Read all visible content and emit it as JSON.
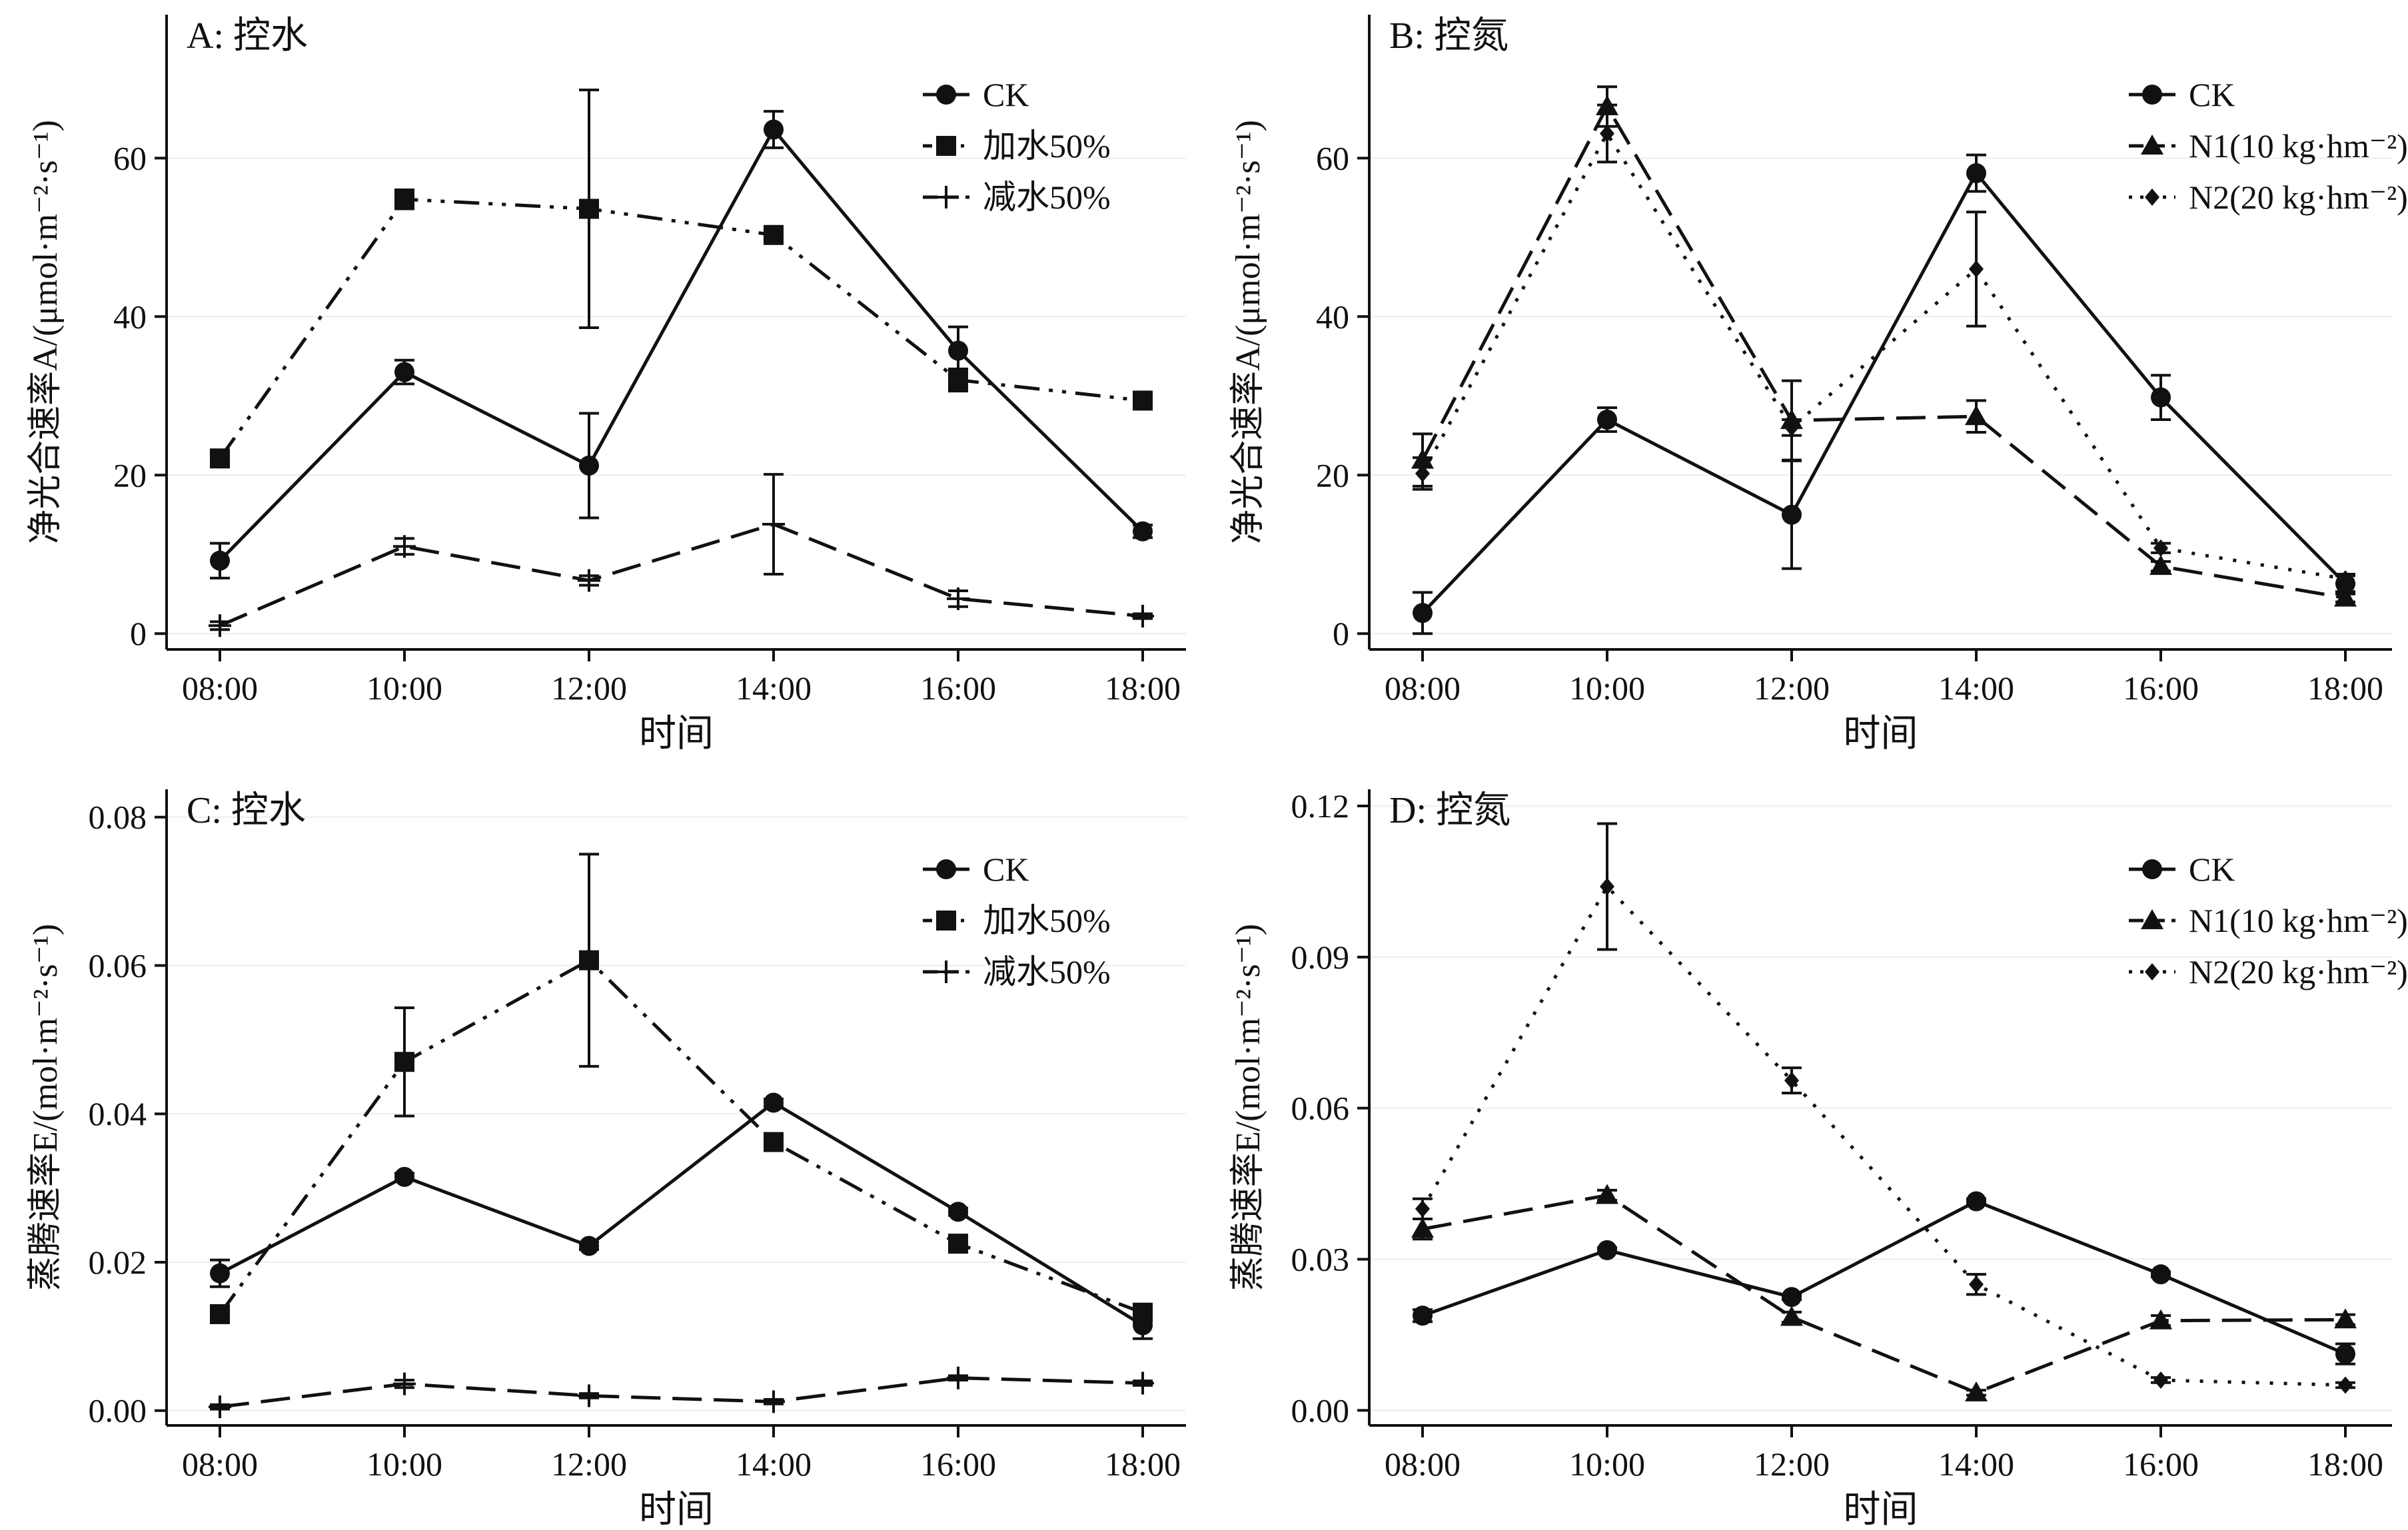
{
  "chart_data": [
    {
      "id": "A",
      "type": "line",
      "title": "A: 控水",
      "xlabel": "时间",
      "ylabel": "净光合速率A/(μmol·m⁻²·s⁻¹)",
      "categories": [
        "08:00",
        "10:00",
        "12:00",
        "14:00",
        "16:00",
        "18:00"
      ],
      "ylim": [
        -2,
        76
      ],
      "yticks": [
        0,
        20,
        40,
        60
      ],
      "ytick_labels": [
        "0",
        "20",
        "40",
        "60"
      ],
      "legend_position": "top-right",
      "series": [
        {
          "name": "CK",
          "marker": "circle",
          "dash": "solid",
          "values": [
            9.2,
            33.0,
            21.2,
            63.6,
            35.7,
            12.9
          ],
          "errors": [
            2.2,
            1.5,
            6.6,
            2.3,
            3.0,
            0.8
          ]
        },
        {
          "name": "加水50%",
          "marker": "square",
          "dash": "dashdotdot",
          "values": [
            22.1,
            54.8,
            53.6,
            50.3,
            32.0,
            29.4
          ],
          "errors": [
            0.6,
            1.2,
            15.0,
            0.5,
            1.4,
            0.8
          ]
        },
        {
          "name": "减水50%",
          "marker": "plus",
          "dash": "dashed",
          "values": [
            1.0,
            11.0,
            6.7,
            13.8,
            4.4,
            2.2
          ],
          "errors": [
            0.5,
            1.0,
            0.6,
            6.3,
            1.0,
            0.3
          ]
        }
      ]
    },
    {
      "id": "B",
      "type": "line",
      "title": "B: 控氮",
      "xlabel": "时间",
      "ylabel": "净光合速率A/(μmol·m⁻²·s⁻¹)",
      "categories": [
        "08:00",
        "10:00",
        "12:00",
        "14:00",
        "16:00",
        "18:00"
      ],
      "ylim": [
        -2,
        76
      ],
      "yticks": [
        0,
        20,
        40,
        60
      ],
      "ytick_labels": [
        "0",
        "20",
        "40",
        "60"
      ],
      "legend_position": "top-right",
      "series": [
        {
          "name": "CK",
          "marker": "circle",
          "dash": "solid",
          "values": [
            2.6,
            27.0,
            15.0,
            58.1,
            29.8,
            6.3
          ],
          "errors": [
            2.6,
            1.5,
            6.8,
            2.3,
            2.8,
            1.0
          ]
        },
        {
          "name": "N1(10 kg·hm⁻²)",
          "marker": "triangle",
          "dash": "dashed",
          "values": [
            21.9,
            66.5,
            26.9,
            27.4,
            8.5,
            4.5
          ],
          "errors": [
            3.3,
            2.5,
            5.0,
            2.0,
            0.6,
            0.5
          ]
        },
        {
          "name": "N2(20 kg·hm⁻²)",
          "marker": "diamond",
          "dash": "dotted",
          "values": [
            20.2,
            63.1,
            26.0,
            46.0,
            10.8,
            6.9
          ],
          "errors": [
            2.0,
            3.6,
            1.0,
            7.2,
            0.6,
            0.6
          ]
        }
      ]
    },
    {
      "id": "C",
      "type": "line",
      "title": "C: 控水",
      "xlabel": "时间",
      "ylabel": "蒸腾速率E/(mol·m⁻²·s⁻¹)",
      "categories": [
        "08:00",
        "10:00",
        "12:00",
        "14:00",
        "16:00",
        "18:00"
      ],
      "ylim": [
        -0.002,
        0.0815
      ],
      "yticks": [
        0,
        0.02,
        0.04,
        0.06,
        0.08
      ],
      "ytick_labels": [
        "0.00",
        "0.02",
        "0.04",
        "0.06",
        "0.08"
      ],
      "legend_position": "top-right",
      "series": [
        {
          "name": "CK",
          "marker": "circle",
          "dash": "solid",
          "values": [
            0.0185,
            0.0315,
            0.0222,
            0.0415,
            0.0268,
            0.0115
          ],
          "errors": [
            0.0018,
            0.0005,
            0.0005,
            0.0005,
            0.0005,
            0.0018
          ]
        },
        {
          "name": "加水50%",
          "marker": "square",
          "dash": "dashdotdot",
          "values": [
            0.013,
            0.047,
            0.0607,
            0.0362,
            0.0225,
            0.0132
          ],
          "errors": [
            0.0004,
            0.0073,
            0.0143,
            0.0004,
            0.0004,
            0.0004
          ]
        },
        {
          "name": "减水50%",
          "marker": "plus",
          "dash": "dashed",
          "values": [
            0.0005,
            0.0036,
            0.002,
            0.0012,
            0.0044,
            0.0037
          ],
          "errors": [
            0.0003,
            0.0005,
            0.0003,
            0.0003,
            0.0003,
            0.0003
          ]
        }
      ]
    },
    {
      "id": "D",
      "type": "line",
      "title": "D: 控氮",
      "xlabel": "时间",
      "ylabel": "蒸腾速率E/(mol·m⁻²·s⁻¹)",
      "categories": [
        "08:00",
        "10:00",
        "12:00",
        "14:00",
        "16:00",
        "18:00"
      ],
      "ylim": [
        -0.003,
        0.12
      ],
      "yticks": [
        0,
        0.03,
        0.06,
        0.09,
        0.12
      ],
      "ytick_labels": [
        "0.00",
        "0.03",
        "0.06",
        "0.09",
        "0.12"
      ],
      "legend_position": "top-right",
      "series": [
        {
          "name": "CK",
          "marker": "circle",
          "dash": "solid",
          "values": [
            0.0188,
            0.0318,
            0.0225,
            0.0415,
            0.027,
            0.0112
          ],
          "errors": [
            0.0012,
            0.0005,
            0.0005,
            0.0005,
            0.0005,
            0.002
          ]
        },
        {
          "name": "N1(10 kg·hm⁻²)",
          "marker": "triangle",
          "dash": "dashed",
          "values": [
            0.036,
            0.0427,
            0.0185,
            0.0035,
            0.0178,
            0.018
          ],
          "errors": [
            0.002,
            0.001,
            0.001,
            0.0005,
            0.001,
            0.001
          ]
        },
        {
          "name": "N2(20 kg·hm⁻²)",
          "marker": "diamond",
          "dash": "dotted",
          "values": [
            0.04,
            0.104,
            0.0655,
            0.025,
            0.006,
            0.005
          ],
          "errors": [
            0.002,
            0.0125,
            0.0025,
            0.002,
            0.0005,
            0.0005
          ]
        }
      ]
    }
  ]
}
